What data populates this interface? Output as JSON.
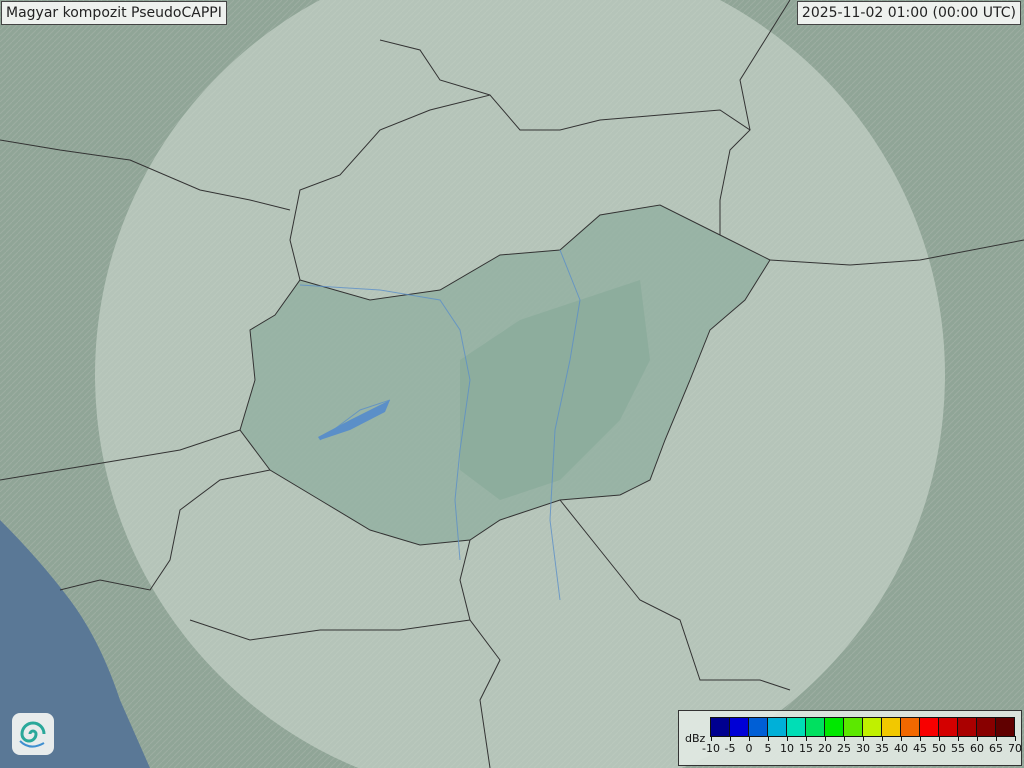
{
  "title": "Magyar kompozit  PseudoCAPPI",
  "timestamp": "2025-11-02 01:00 (00:00 UTC)",
  "logo": "swirl-logo",
  "legend": {
    "unit": "dBz",
    "ticks": [
      "-10",
      "-5",
      "0",
      "5",
      "10",
      "15",
      "20",
      "25",
      "30",
      "35",
      "40",
      "45",
      "50",
      "55",
      "60",
      "65",
      "70"
    ],
    "colors": [
      "#00008f",
      "#0000d6",
      "#005fd6",
      "#00b0d8",
      "#00deb6",
      "#00e060",
      "#00e800",
      "#5ce800",
      "#c0f000",
      "#f2c800",
      "#f26800",
      "#f80000",
      "#d40000",
      "#aa0000",
      "#880000",
      "#600000"
    ]
  },
  "colors": {
    "land": "#90a597",
    "radar_coverage": "#c9d6cd",
    "hungary": "#8faa9c",
    "sea": "#5a7896",
    "border": "#333333",
    "river": "#5b8fc8"
  }
}
